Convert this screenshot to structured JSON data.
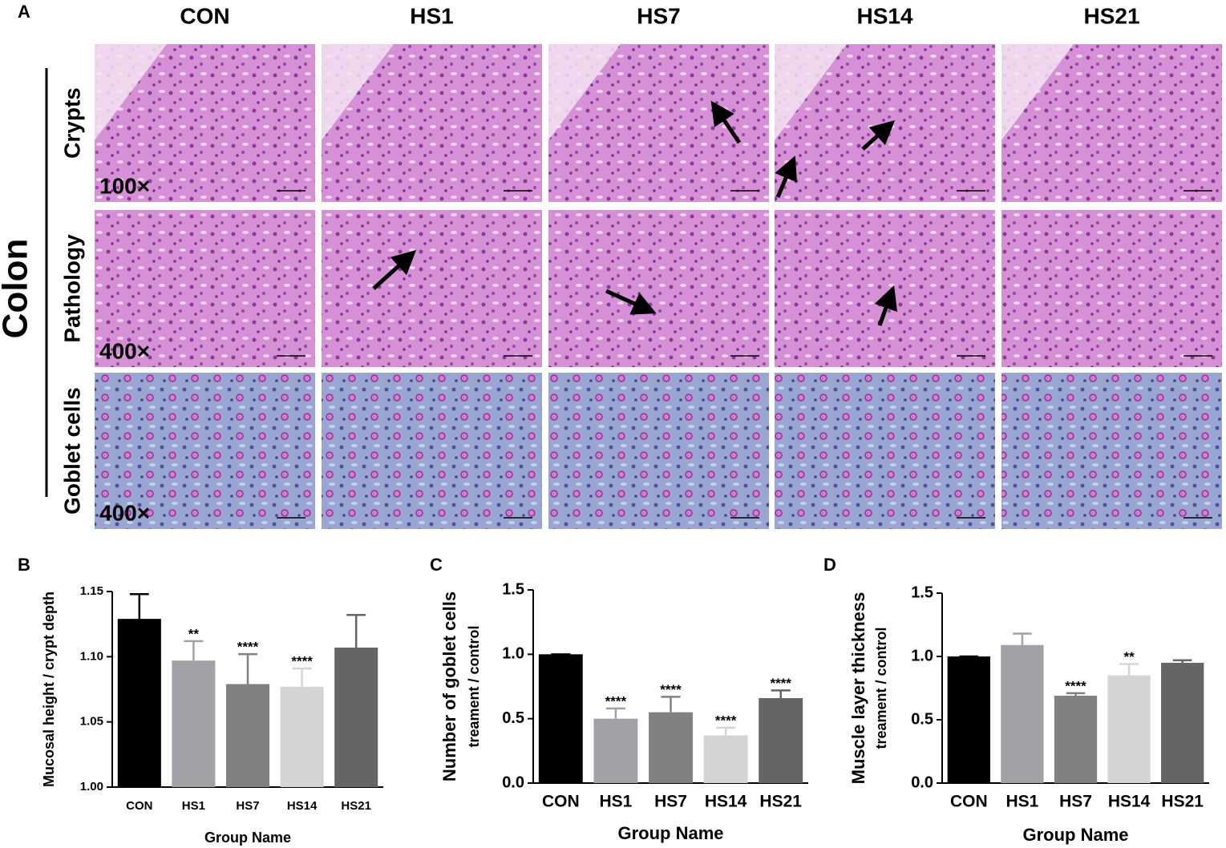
{
  "panel_a": {
    "panel_label": "A",
    "columns": [
      "CON",
      "HS1",
      "HS7",
      "HS14",
      "HS21"
    ],
    "side_label": "Colon",
    "rows": [
      {
        "label": "Crypts",
        "magnification": "100×"
      },
      {
        "label": "Pathology",
        "magnification": "400×"
      },
      {
        "label": "Goblet cells",
        "magnification": "400×"
      }
    ]
  },
  "chart_data": [
    {
      "type": "bar",
      "panel_label": "B",
      "y_label": [
        "Mucosal height / crypt depth"
      ],
      "x_label": "Group Name",
      "categories": [
        "CON",
        "HS1",
        "HS7",
        "HS14",
        "HS21"
      ],
      "values": [
        1.129,
        1.097,
        1.079,
        1.077,
        1.107
      ],
      "errors": [
        0.019,
        0.015,
        0.023,
        0.014,
        0.025
      ],
      "significance": [
        null,
        "**",
        "****",
        "****",
        null
      ],
      "colors": [
        "#000000",
        "#a1a1a6",
        "#808080",
        "#d4d4d4",
        "#656565"
      ],
      "ylim": [
        1.0,
        1.15
      ],
      "yticks": [
        {
          "value": 1.0,
          "label": "1.00"
        },
        {
          "value": 1.05,
          "label": "1.05"
        },
        {
          "value": 1.1,
          "label": "1.10"
        },
        {
          "value": 1.15,
          "label": "1.15"
        }
      ]
    },
    {
      "type": "bar",
      "panel_label": "C",
      "y_label": [
        "Number of goblet cells",
        "treament / control"
      ],
      "x_label": "Group Name",
      "categories": [
        "CON",
        "HS1",
        "HS7",
        "HS14",
        "HS21"
      ],
      "values": [
        1.0,
        0.5,
        0.55,
        0.37,
        0.66
      ],
      "errors": [
        0,
        0.08,
        0.12,
        0.06,
        0.06
      ],
      "significance": [
        null,
        "****",
        "****",
        "****",
        "****"
      ],
      "colors": [
        "#000000",
        "#a1a1a6",
        "#808080",
        "#d4d4d4",
        "#656565"
      ],
      "ylim": [
        0,
        1.5
      ],
      "yticks": [
        {
          "value": 0,
          "label": "0.0"
        },
        0.5,
        {
          "value": 1,
          "label": "1.0"
        },
        1.5
      ]
    },
    {
      "type": "bar",
      "panel_label": "D",
      "y_label": [
        "Muscle layer thickness",
        "treament / control"
      ],
      "x_label": "Group Name",
      "categories": [
        "CON",
        "HS1",
        "HS7",
        "HS14",
        "HS21"
      ],
      "values": [
        1.0,
        1.09,
        0.69,
        0.85,
        0.95
      ],
      "errors": [
        0,
        0.09,
        0.02,
        0.09,
        0.02
      ],
      "significance": [
        null,
        null,
        "****",
        "**",
        null
      ],
      "colors": [
        "#000000",
        "#a1a1a6",
        "#808080",
        "#d4d4d4",
        "#656565"
      ],
      "ylim": [
        0,
        1.5
      ],
      "yticks": [
        {
          "value": 0,
          "label": "0.0"
        },
        0.5,
        {
          "value": 1,
          "label": "1.0"
        },
        1.5
      ]
    }
  ]
}
